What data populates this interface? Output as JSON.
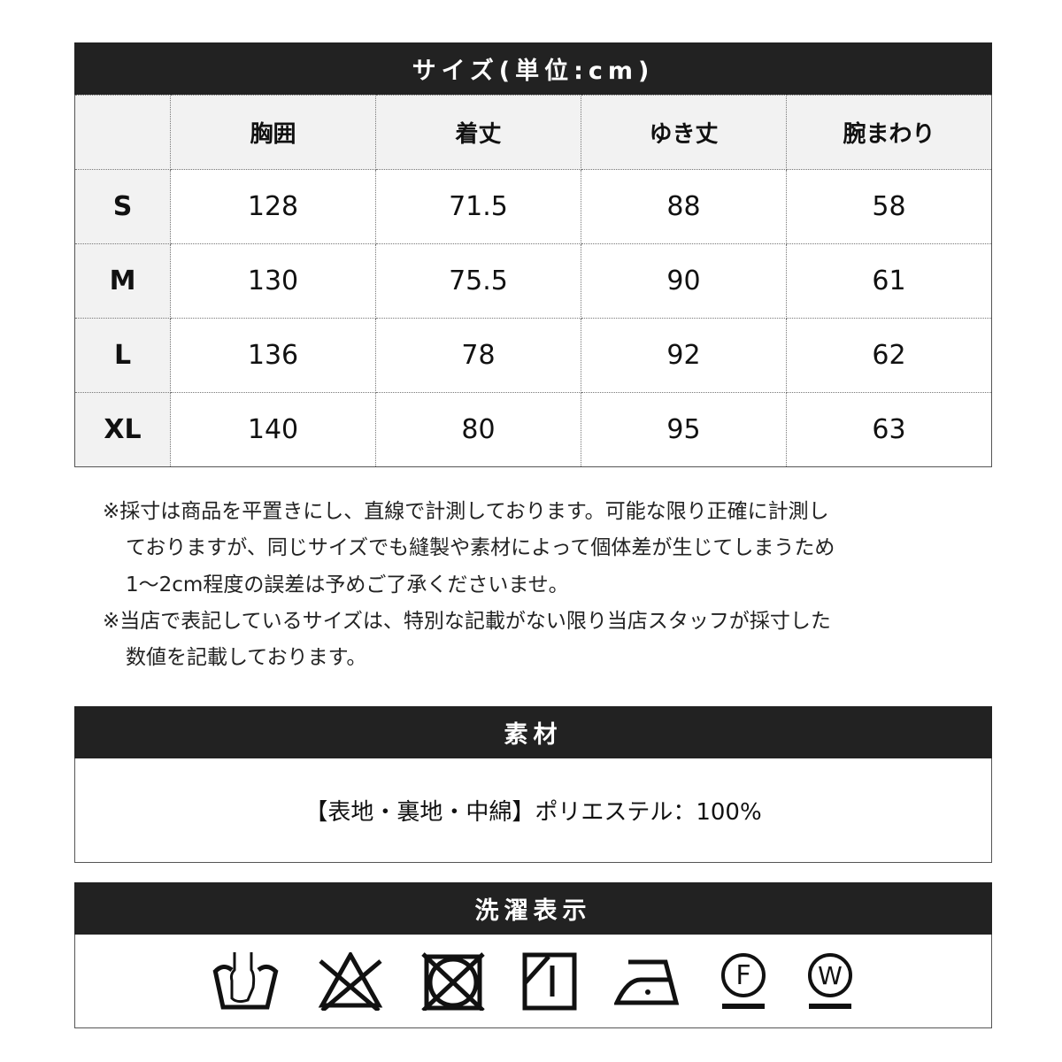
{
  "size_table": {
    "title": "サイズ(単位:cm)",
    "columns": [
      "",
      "胸囲",
      "着丈",
      "ゆき丈",
      "腕まわり"
    ],
    "rows": [
      {
        "size": "S",
        "values": [
          "128",
          "71.5",
          "88",
          "58"
        ]
      },
      {
        "size": "M",
        "values": [
          "130",
          "75.5",
          "90",
          "61"
        ]
      },
      {
        "size": "L",
        "values": [
          "136",
          "78",
          "92",
          "62"
        ]
      },
      {
        "size": "XL",
        "values": [
          "140",
          "80",
          "95",
          "63"
        ]
      }
    ]
  },
  "notes": [
    "※採寸は商品を平置きにし、直線で計測しております。可能な限り正確に計測し",
    "ておりますが、同じサイズでも縫製や素材によって個体差が生じてしまうため",
    "1〜2cm程度の誤差は予めご了承くださいませ。",
    "※当店で表記しているサイズは、特別な記載がない限り当店スタッフが採寸した",
    "数値を記載しております。"
  ],
  "material": {
    "title": "素材",
    "text": "【表地・裏地・中綿】ポリエステル：100%"
  },
  "care": {
    "title": "洗濯表示",
    "icons": [
      "hand-wash-icon",
      "no-bleach-icon",
      "no-tumble-dry-icon",
      "drip-dry-shade-icon",
      "iron-low-icon",
      "dry-clean-f-icon",
      "wet-clean-w-icon"
    ],
    "letters": {
      "f": "F",
      "w": "W"
    }
  },
  "colors": {
    "header_bar": "#222222",
    "header_cell": "#f2f2f2"
  }
}
